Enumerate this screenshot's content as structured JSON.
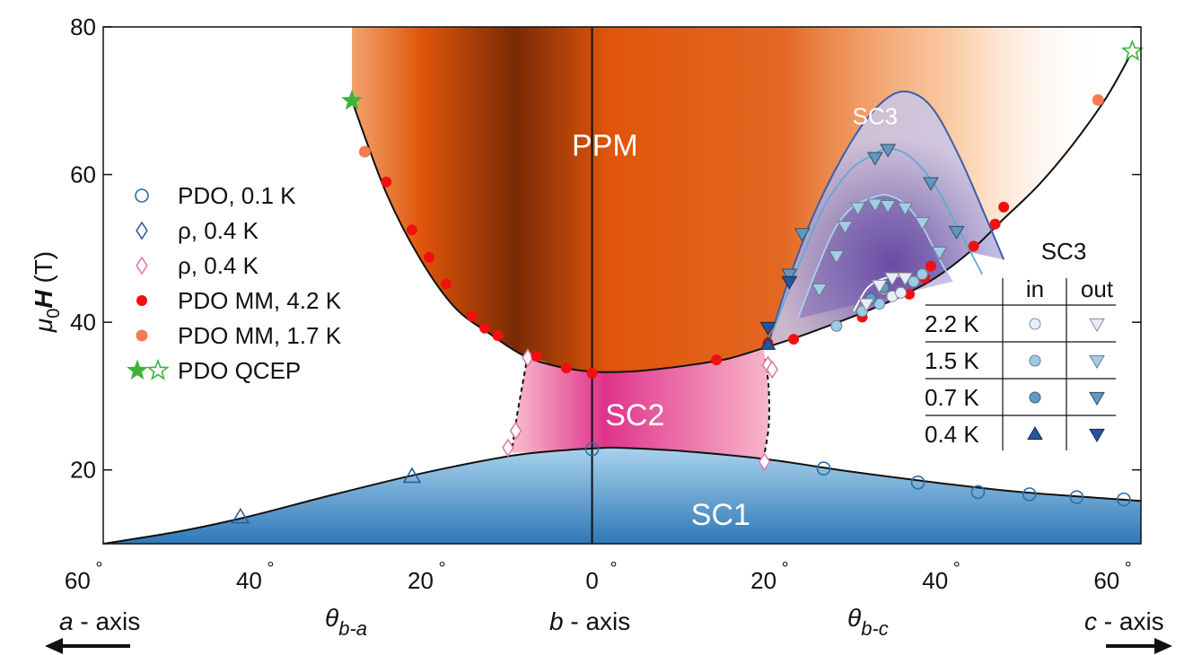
{
  "chart_data": {
    "type": "scatter",
    "title": "",
    "ylabel": "μ0H (T)",
    "ylabel_parts": {
      "mu": "μ",
      "sub": "0",
      "H": "H",
      "unit": " (T)"
    },
    "xlabel_left": {
      "theta": "θ",
      "sub": "b-a"
    },
    "xlabel_right": {
      "theta": "θ",
      "sub": "b-c"
    },
    "axis_names": {
      "left": "a",
      "center": "b",
      "right": "c",
      "suffix": " - axis"
    },
    "xlim": [
      -57,
      64
    ],
    "ylim": [
      10,
      80
    ],
    "x_note": "negative x = angle from b toward a (theta_b-a); positive x = angle from b toward c (theta_b-c)",
    "x_ticks": [
      {
        "v": -60,
        "label": "60"
      },
      {
        "v": -40,
        "label": "40"
      },
      {
        "v": -20,
        "label": "20"
      },
      {
        "v": 0,
        "label": "0"
      },
      {
        "v": 20,
        "label": "20"
      },
      {
        "v": 40,
        "label": "40"
      },
      {
        "v": 60,
        "label": "60"
      }
    ],
    "degree_symbol": "°",
    "y_ticks": [
      {
        "v": 20,
        "label": "20"
      },
      {
        "v": 40,
        "label": "40"
      },
      {
        "v": 60,
        "label": "60"
      },
      {
        "v": 80,
        "label": "80"
      }
    ],
    "regions": [
      {
        "name": "PPM",
        "x": 1.5,
        "y": 64
      },
      {
        "name": "SC2",
        "x": 5,
        "y": 27.5
      },
      {
        "name": "SC1",
        "x": 15,
        "y": 14
      },
      {
        "name": "SC3",
        "x": 33,
        "y": 68.3
      }
    ],
    "colors": {
      "ppm_dark": "#7a2a06",
      "ppm_mid": "#e0560a",
      "ppm_light": "#f7a05a",
      "sc1_top": "#a9d2ec",
      "sc1_bottom": "#2f78b8",
      "sc2_dark": "#e0338c",
      "sc2_light": "#f8b9ca",
      "sc3_fill": "#9b92cc",
      "sc3_edge": "#3a5fa6",
      "sc3_inner": "#5fa9d6",
      "sc3_core": "#6548a6",
      "red": "#f01010",
      "orange": "#f47c50",
      "green": "#3cb43c",
      "pdo_circle": "#2b6ea6",
      "rho_blue": "#2b5f97",
      "rho_pink": "#e07ab0"
    },
    "curves": {
      "ppm_boundary": [
        [
          -28,
          70
        ],
        [
          -24,
          57.5
        ],
        [
          -20,
          48.5
        ],
        [
          -16,
          42
        ],
        [
          -12,
          38.5
        ],
        [
          -8,
          35.5
        ],
        [
          -4,
          34
        ],
        [
          0,
          33.3
        ],
        [
          4,
          33.3
        ],
        [
          8,
          33.7
        ],
        [
          12,
          34.3
        ],
        [
          16,
          35.1
        ],
        [
          20,
          36.5
        ],
        [
          24,
          38
        ],
        [
          28,
          39.7
        ],
        [
          32,
          41.5
        ],
        [
          36,
          43.5
        ],
        [
          40,
          46
        ],
        [
          44,
          49.5
        ],
        [
          48,
          54
        ],
        [
          52,
          58.5
        ],
        [
          56,
          64
        ],
        [
          60,
          70.5
        ],
        [
          63,
          76.7
        ]
      ],
      "sc1_boundary": [
        [
          -57,
          10
        ],
        [
          -48,
          11.7
        ],
        [
          -40,
          13.7
        ],
        [
          -30,
          16.7
        ],
        [
          -20,
          19.5
        ],
        [
          -10,
          21.8
        ],
        [
          -5,
          22.5
        ],
        [
          0,
          22.9
        ],
        [
          3,
          23
        ],
        [
          10,
          22.6
        ],
        [
          20,
          21.5
        ],
        [
          30,
          19.8
        ],
        [
          40,
          18.3
        ],
        [
          50,
          17
        ],
        [
          64,
          15.8
        ]
      ],
      "sc2_left": [
        [
          -7.5,
          35.5
        ],
        [
          -8.2,
          31
        ],
        [
          -8.8,
          27
        ],
        [
          -9.3,
          23
        ]
      ],
      "sc2_right": [
        [
          20.2,
          35
        ],
        [
          20.6,
          31
        ],
        [
          20.6,
          26
        ],
        [
          20,
          21.5
        ]
      ],
      "sc3_outer": [
        [
          20.5,
          36.8
        ],
        [
          23,
          46
        ],
        [
          26,
          55
        ],
        [
          29,
          62
        ],
        [
          32,
          67.5
        ],
        [
          35,
          70.8
        ],
        [
          37.5,
          71
        ],
        [
          40,
          68.5
        ],
        [
          43,
          62
        ],
        [
          46,
          54
        ],
        [
          48,
          48.5
        ]
      ],
      "sc3_contour_1": [
        [
          21,
          38.5
        ],
        [
          23.5,
          46
        ],
        [
          27,
          55.5
        ],
        [
          30,
          60.5
        ],
        [
          32.5,
          62.5
        ],
        [
          34.5,
          63.5
        ],
        [
          37,
          62.5
        ],
        [
          40,
          58.5
        ],
        [
          43,
          52
        ],
        [
          45.5,
          46.5
        ]
      ],
      "sc3_contour_2": [
        [
          24,
          40.5
        ],
        [
          26.5,
          48
        ],
        [
          28.5,
          53
        ],
        [
          30.5,
          55.7
        ],
        [
          33,
          57
        ],
        [
          34.5,
          57.2
        ],
        [
          36.5,
          56
        ],
        [
          38.5,
          53
        ],
        [
          40.5,
          48.5
        ],
        [
          42,
          45.5
        ]
      ],
      "sc3_contour_3": [
        [
          30.5,
          41.5
        ],
        [
          32,
          44.5
        ],
        [
          33.5,
          45.7
        ],
        [
          35,
          46.2
        ],
        [
          36.5,
          46.2
        ],
        [
          38,
          46
        ],
        [
          39,
          45.5
        ]
      ]
    },
    "series": [
      {
        "name": "PDO, 0.1 K",
        "marker": "circle-open",
        "points": [
          [
            0,
            22.8
          ],
          [
            27,
            20.2
          ],
          [
            38,
            18.3
          ],
          [
            45,
            17
          ],
          [
            51,
            16.7
          ],
          [
            56.5,
            16.3
          ],
          [
            62,
            16
          ]
        ]
      },
      {
        "name": "ρ, 0.4 K",
        "marker": "triangle-open",
        "points": [
          [
            -41,
            13.6
          ],
          [
            -21,
            19.1
          ]
        ]
      },
      {
        "name": "ρ, 0.4 K",
        "marker": "diamond-open",
        "points": [
          [
            -7.5,
            35.2
          ],
          [
            -8.9,
            25.3
          ],
          [
            -9.8,
            23
          ],
          [
            20.5,
            34.2
          ],
          [
            21,
            33.6
          ],
          [
            20.1,
            21.1
          ]
        ]
      },
      {
        "name": "PDO MM, 4.2 K",
        "marker": "circle-filled",
        "points": [
          [
            -24,
            59
          ],
          [
            -21,
            52.5
          ],
          [
            -19,
            48.8
          ],
          [
            -17,
            45.2
          ],
          [
            -14,
            40.8
          ],
          [
            -12.5,
            39.2
          ],
          [
            -11,
            38.2
          ],
          [
            -6.5,
            35.4
          ],
          [
            -3,
            33.8
          ],
          [
            0,
            33.1
          ],
          [
            14.5,
            34.9
          ],
          [
            20.5,
            37.2
          ],
          [
            23.5,
            37.7
          ],
          [
            31.5,
            40.7
          ],
          [
            37,
            43.8
          ],
          [
            38.8,
            46
          ],
          [
            39.5,
            47.6
          ],
          [
            44.5,
            50.3
          ],
          [
            47,
            53.3
          ],
          [
            48,
            55.6
          ]
        ]
      },
      {
        "name": "PDO MM, 1.7 K",
        "marker": "circle-orange",
        "points": [
          [
            -26.5,
            63.1
          ],
          [
            59,
            70.1
          ]
        ]
      },
      {
        "name": "PDO QCEP",
        "marker": "star",
        "points": [
          [
            -28,
            70
          ]
        ]
      },
      {
        "name": "PDO QCEP",
        "marker": "star-open",
        "points": [
          [
            63,
            76.7
          ]
        ]
      },
      {
        "name": "SC3 in, 2.2 K",
        "marker": "circle-sc3-1",
        "points": [
          [
            35,
            43.5
          ],
          [
            36,
            44
          ],
          [
            34,
            44.5
          ]
        ]
      },
      {
        "name": "SC3 in, 1.5 K",
        "marker": "circle-sc3-2",
        "points": [
          [
            28.5,
            39.5
          ],
          [
            31.5,
            41.5
          ],
          [
            33.5,
            42.5
          ],
          [
            37.5,
            45.5
          ],
          [
            38.5,
            46.5
          ]
        ]
      },
      {
        "name": "SC3 in, 0.7 K",
        "marker": "circle-sc3-3",
        "points": [
          [
            32.5,
            43.2
          ],
          [
            34,
            44.7
          ]
        ]
      },
      {
        "name": "SC3 out, 2.2 K",
        "marker": "tri-down-sc3-1",
        "points": [
          [
            32,
            42.5
          ],
          [
            33.5,
            45
          ],
          [
            35,
            46
          ],
          [
            36.5,
            46
          ]
        ]
      },
      {
        "name": "SC3 out, 1.5 K",
        "marker": "tri-down-sc3-2",
        "points": [
          [
            26.5,
            44.5
          ],
          [
            28.5,
            49
          ],
          [
            29.5,
            53
          ],
          [
            31,
            55.5
          ],
          [
            33,
            56
          ],
          [
            34.5,
            55.8
          ],
          [
            36.5,
            55.5
          ],
          [
            38.5,
            53.5
          ],
          [
            40.5,
            49.5
          ]
        ]
      },
      {
        "name": "SC3 out, 0.7 K",
        "marker": "tri-down-sc3-3",
        "points": [
          [
            23,
            46.5
          ],
          [
            24.5,
            52
          ],
          [
            33,
            62.3
          ],
          [
            34.5,
            63.4
          ],
          [
            39.5,
            58.9
          ],
          [
            42.5,
            52.3
          ]
        ]
      },
      {
        "name": "SC3 in, 0.4 K",
        "marker": "tri-up-sc3-4",
        "points": [
          [
            20.5,
            37
          ]
        ]
      },
      {
        "name": "SC3 out, 0.4 K",
        "marker": "tri-down-sc3-4",
        "points": [
          [
            20.5,
            39.3
          ],
          [
            23,
            45.5
          ]
        ]
      }
    ],
    "legend": [
      {
        "label": "PDO, 0.1 K",
        "marker": "circle-open"
      },
      {
        "label": "ρ, 0.4 K",
        "marker": "diamond-blue"
      },
      {
        "label": "ρ, 0.4 K",
        "marker": "diamond-pink"
      },
      {
        "label": "PDO MM, 4.2 K",
        "marker": "circle-filled"
      },
      {
        "label": "PDO MM, 1.7 K",
        "marker": "circle-orange"
      },
      {
        "label": "PDO QCEP",
        "marker": "star-pair"
      }
    ],
    "sc3_table": {
      "title": "SC3",
      "col_in": "in",
      "col_out": "out",
      "rows": [
        {
          "temp": "2.2 K",
          "in_marker": "circle-sc3-1",
          "out_marker": "tri-down-sc3-1"
        },
        {
          "temp": "1.5 K",
          "in_marker": "circle-sc3-2",
          "out_marker": "tri-down-sc3-2"
        },
        {
          "temp": "0.7 K",
          "in_marker": "circle-sc3-3",
          "out_marker": "tri-down-sc3-3"
        },
        {
          "temp": "0.4 K",
          "in_marker": "tri-up-sc3-4",
          "out_marker": "tri-down-sc3-4"
        }
      ]
    }
  }
}
